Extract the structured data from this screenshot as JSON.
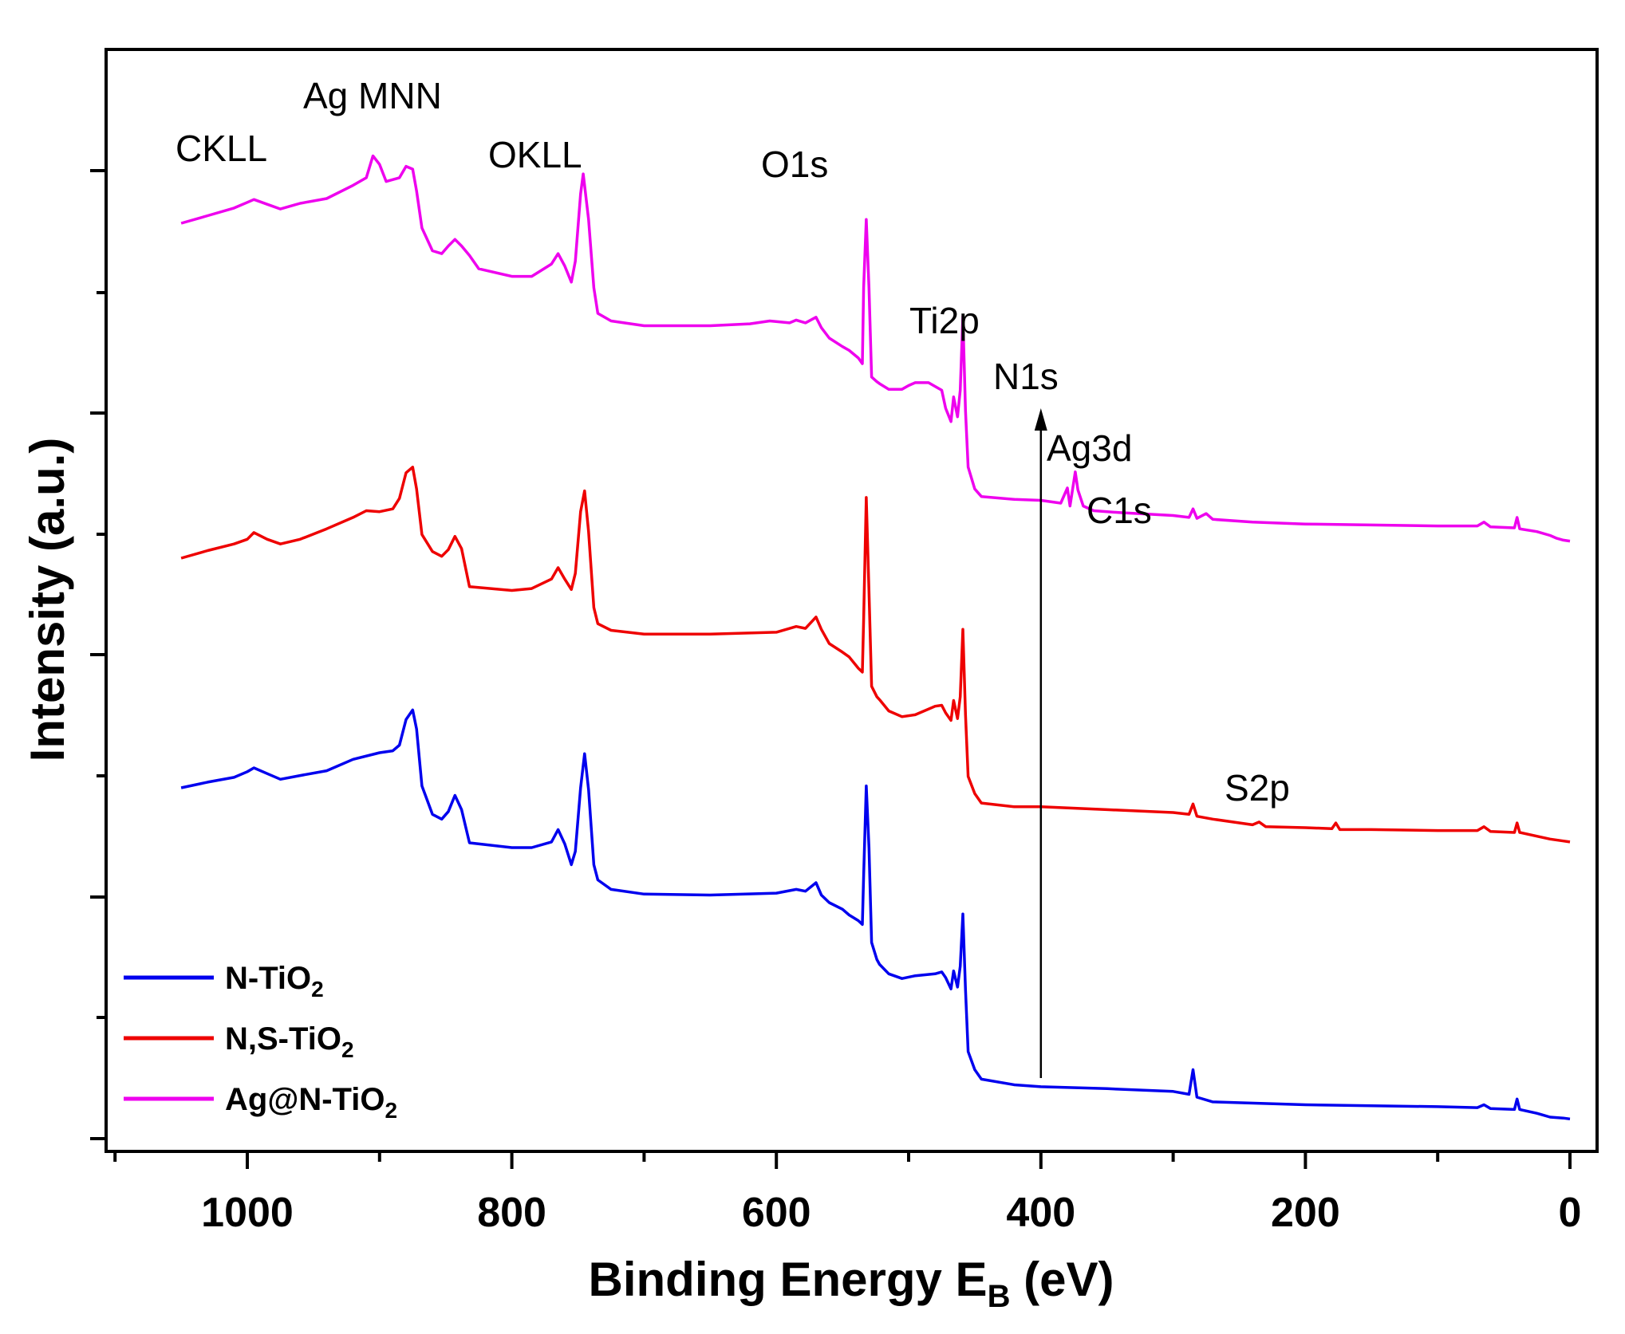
{
  "chart_data": {
    "type": "line",
    "title": "",
    "xlabel": "Binding Energy E",
    "xlabel_sub": "B",
    "xlabel_unit": " (eV)",
    "ylabel": "Intensity (a.u.)",
    "xlim": [
      1100,
      0
    ],
    "ylim": [
      0,
      100
    ],
    "x_ticks": [
      1000,
      800,
      600,
      400,
      200,
      0
    ],
    "x_tick_labels": [
      "1000",
      "800",
      "600",
      "400",
      "200",
      "0"
    ],
    "y_tick_labels_shown": false,
    "legend_position": "bottom-left",
    "series": [
      {
        "name": "N-TiO",
        "sub": "2",
        "color": "#0000ee",
        "points": [
          [
            1050,
            36.3
          ],
          [
            1030,
            36.9
          ],
          [
            1010,
            37.4
          ],
          [
            1000,
            38.0
          ],
          [
            995,
            38.4
          ],
          [
            985,
            37.8
          ],
          [
            975,
            37.2
          ],
          [
            960,
            37.6
          ],
          [
            940,
            38.1
          ],
          [
            920,
            39.3
          ],
          [
            900,
            40.0
          ],
          [
            890,
            40.2
          ],
          [
            885,
            40.8
          ],
          [
            880,
            43.5
          ],
          [
            875,
            44.5
          ],
          [
            872,
            42.5
          ],
          [
            868,
            36.5
          ],
          [
            860,
            33.5
          ],
          [
            853,
            33.0
          ],
          [
            848,
            33.8
          ],
          [
            843,
            35.5
          ],
          [
            838,
            34.0
          ],
          [
            832,
            30.5
          ],
          [
            800,
            30.0
          ],
          [
            785,
            30.0
          ],
          [
            770,
            30.6
          ],
          [
            765,
            31.9
          ],
          [
            760,
            30.4
          ],
          [
            755,
            28.2
          ],
          [
            752,
            29.6
          ],
          [
            748,
            36.3
          ],
          [
            745,
            39.9
          ],
          [
            742,
            36.1
          ],
          [
            738,
            28.2
          ],
          [
            735,
            26.6
          ],
          [
            725,
            25.6
          ],
          [
            700,
            25.1
          ],
          [
            650,
            25.0
          ],
          [
            600,
            25.2
          ],
          [
            585,
            25.6
          ],
          [
            578,
            25.4
          ],
          [
            570,
            26.3
          ],
          [
            566,
            25.0
          ],
          [
            560,
            24.2
          ],
          [
            550,
            23.5
          ],
          [
            545,
            22.9
          ],
          [
            538,
            22.3
          ],
          [
            535,
            21.9
          ],
          [
            534,
            27.0
          ],
          [
            532,
            36.5
          ],
          [
            530,
            30.0
          ],
          [
            528,
            20.0
          ],
          [
            524,
            18.2
          ],
          [
            522,
            17.7
          ],
          [
            515,
            16.7
          ],
          [
            505,
            16.2
          ],
          [
            495,
            16.5
          ],
          [
            480,
            16.7
          ],
          [
            475,
            16.9
          ],
          [
            472,
            16.3
          ],
          [
            468,
            15.1
          ],
          [
            466,
            17.0
          ],
          [
            463,
            15.3
          ],
          [
            461,
            17.5
          ],
          [
            459,
            23.0
          ],
          [
            457,
            15.0
          ],
          [
            455,
            8.5
          ],
          [
            450,
            6.6
          ],
          [
            445,
            5.6
          ],
          [
            420,
            5.0
          ],
          [
            400,
            4.8
          ],
          [
            350,
            4.6
          ],
          [
            300,
            4.3
          ],
          [
            288,
            4.0
          ],
          [
            285,
            6.6
          ],
          [
            282,
            3.7
          ],
          [
            270,
            3.2
          ],
          [
            200,
            2.9
          ],
          [
            150,
            2.8
          ],
          [
            100,
            2.7
          ],
          [
            70,
            2.6
          ],
          [
            65,
            2.9
          ],
          [
            60,
            2.5
          ],
          [
            42,
            2.4
          ],
          [
            40,
            3.5
          ],
          [
            38,
            2.4
          ],
          [
            25,
            2.0
          ],
          [
            15,
            1.6
          ],
          [
            5,
            1.5
          ],
          [
            0,
            1.4
          ]
        ]
      },
      {
        "name": "N,S-TiO",
        "sub": "2",
        "color": "#ee0000",
        "points": [
          [
            1050,
            60.5
          ],
          [
            1030,
            61.3
          ],
          [
            1010,
            62.0
          ],
          [
            1000,
            62.5
          ],
          [
            995,
            63.2
          ],
          [
            985,
            62.5
          ],
          [
            975,
            62.0
          ],
          [
            960,
            62.5
          ],
          [
            940,
            63.6
          ],
          [
            920,
            64.8
          ],
          [
            910,
            65.5
          ],
          [
            900,
            65.4
          ],
          [
            890,
            65.7
          ],
          [
            885,
            66.8
          ],
          [
            880,
            69.5
          ],
          [
            875,
            70.1
          ],
          [
            872,
            67.8
          ],
          [
            868,
            63.0
          ],
          [
            860,
            61.2
          ],
          [
            853,
            60.7
          ],
          [
            848,
            61.4
          ],
          [
            843,
            62.8
          ],
          [
            838,
            61.5
          ],
          [
            832,
            57.5
          ],
          [
            800,
            57.1
          ],
          [
            785,
            57.3
          ],
          [
            770,
            58.3
          ],
          [
            765,
            59.5
          ],
          [
            760,
            58.3
          ],
          [
            755,
            57.2
          ],
          [
            752,
            58.9
          ],
          [
            748,
            65.4
          ],
          [
            745,
            67.6
          ],
          [
            742,
            63.3
          ],
          [
            738,
            55.3
          ],
          [
            735,
            53.6
          ],
          [
            725,
            52.9
          ],
          [
            700,
            52.5
          ],
          [
            650,
            52.5
          ],
          [
            600,
            52.7
          ],
          [
            585,
            53.3
          ],
          [
            578,
            53.1
          ],
          [
            570,
            54.3
          ],
          [
            566,
            53.0
          ],
          [
            560,
            51.5
          ],
          [
            550,
            50.6
          ],
          [
            545,
            50.1
          ],
          [
            538,
            48.9
          ],
          [
            535,
            48.5
          ],
          [
            534,
            54.0
          ],
          [
            532,
            66.9
          ],
          [
            530,
            57.0
          ],
          [
            528,
            47.0
          ],
          [
            524,
            45.9
          ],
          [
            522,
            45.6
          ],
          [
            515,
            44.4
          ],
          [
            505,
            43.8
          ],
          [
            495,
            44.0
          ],
          [
            480,
            44.9
          ],
          [
            475,
            45.0
          ],
          [
            472,
            44.2
          ],
          [
            468,
            43.4
          ],
          [
            466,
            45.5
          ],
          [
            463,
            43.6
          ],
          [
            461,
            45.9
          ],
          [
            459,
            53.0
          ],
          [
            457,
            44.0
          ],
          [
            455,
            37.5
          ],
          [
            450,
            35.7
          ],
          [
            445,
            34.7
          ],
          [
            420,
            34.3
          ],
          [
            400,
            34.3
          ],
          [
            350,
            34.0
          ],
          [
            300,
            33.7
          ],
          [
            288,
            33.5
          ],
          [
            285,
            34.6
          ],
          [
            282,
            33.3
          ],
          [
            270,
            33.0
          ],
          [
            240,
            32.4
          ],
          [
            235,
            32.7
          ],
          [
            230,
            32.2
          ],
          [
            200,
            32.1
          ],
          [
            180,
            32.0
          ],
          [
            177,
            32.6
          ],
          [
            174,
            31.9
          ],
          [
            150,
            31.9
          ],
          [
            100,
            31.8
          ],
          [
            70,
            31.8
          ],
          [
            65,
            32.2
          ],
          [
            60,
            31.7
          ],
          [
            42,
            31.6
          ],
          [
            40,
            32.6
          ],
          [
            38,
            31.6
          ],
          [
            25,
            31.2
          ],
          [
            15,
            30.9
          ],
          [
            5,
            30.7
          ],
          [
            0,
            30.6
          ]
        ]
      },
      {
        "name": "Ag@N-TiO",
        "sub": "2",
        "color": "#ee00ee",
        "points": [
          [
            1050,
            95.8
          ],
          [
            1030,
            96.6
          ],
          [
            1010,
            97.4
          ],
          [
            1000,
            98.0
          ],
          [
            995,
            98.3
          ],
          [
            985,
            97.8
          ],
          [
            975,
            97.3
          ],
          [
            960,
            97.9
          ],
          [
            940,
            98.4
          ],
          [
            920,
            99.8
          ],
          [
            910,
            100.6
          ],
          [
            905,
            102.9
          ],
          [
            900,
            102.0
          ],
          [
            895,
            100.2
          ],
          [
            885,
            100.6
          ],
          [
            880,
            101.8
          ],
          [
            875,
            101.5
          ],
          [
            872,
            99.2
          ],
          [
            868,
            95.3
          ],
          [
            860,
            92.9
          ],
          [
            853,
            92.6
          ],
          [
            848,
            93.4
          ],
          [
            843,
            94.1
          ],
          [
            838,
            93.4
          ],
          [
            832,
            92.4
          ],
          [
            825,
            91.0
          ],
          [
            800,
            90.2
          ],
          [
            785,
            90.2
          ],
          [
            770,
            91.5
          ],
          [
            765,
            92.6
          ],
          [
            760,
            91.3
          ],
          [
            755,
            89.6
          ],
          [
            752,
            91.8
          ],
          [
            748,
            98.9
          ],
          [
            746,
            101.0
          ],
          [
            742,
            96.2
          ],
          [
            738,
            89.0
          ],
          [
            735,
            86.3
          ],
          [
            725,
            85.5
          ],
          [
            700,
            85.0
          ],
          [
            650,
            85.0
          ],
          [
            620,
            85.2
          ],
          [
            605,
            85.5
          ],
          [
            590,
            85.3
          ],
          [
            585,
            85.6
          ],
          [
            578,
            85.3
          ],
          [
            570,
            85.9
          ],
          [
            566,
            84.8
          ],
          [
            560,
            83.7
          ],
          [
            550,
            82.8
          ],
          [
            545,
            82.4
          ],
          [
            538,
            81.6
          ],
          [
            535,
            81.0
          ],
          [
            534,
            89.0
          ],
          [
            532,
            96.2
          ],
          [
            530,
            89.0
          ],
          [
            528,
            79.6
          ],
          [
            524,
            79.1
          ],
          [
            522,
            78.9
          ],
          [
            515,
            78.3
          ],
          [
            505,
            78.3
          ],
          [
            500,
            78.7
          ],
          [
            495,
            79.0
          ],
          [
            485,
            79.0
          ],
          [
            475,
            78.2
          ],
          [
            472,
            76.3
          ],
          [
            468,
            74.9
          ],
          [
            466,
            77.5
          ],
          [
            463,
            75.4
          ],
          [
            461,
            78.2
          ],
          [
            459,
            86.0
          ],
          [
            457,
            76.0
          ],
          [
            455,
            70.1
          ],
          [
            450,
            67.8
          ],
          [
            445,
            67.0
          ],
          [
            420,
            66.7
          ],
          [
            400,
            66.6
          ],
          [
            385,
            66.3
          ],
          [
            380,
            67.9
          ],
          [
            378,
            66.0
          ],
          [
            374,
            69.6
          ],
          [
            372,
            67.7
          ],
          [
            368,
            66.0
          ],
          [
            360,
            65.5
          ],
          [
            340,
            65.3
          ],
          [
            300,
            65.0
          ],
          [
            288,
            64.8
          ],
          [
            285,
            65.7
          ],
          [
            282,
            64.7
          ],
          [
            275,
            65.2
          ],
          [
            270,
            64.6
          ],
          [
            240,
            64.3
          ],
          [
            200,
            64.1
          ],
          [
            150,
            64.0
          ],
          [
            100,
            63.9
          ],
          [
            70,
            63.9
          ],
          [
            65,
            64.3
          ],
          [
            60,
            63.8
          ],
          [
            42,
            63.7
          ],
          [
            40,
            64.8
          ],
          [
            38,
            63.6
          ],
          [
            25,
            63.3
          ],
          [
            15,
            62.9
          ],
          [
            10,
            62.6
          ],
          [
            5,
            62.4
          ],
          [
            0,
            62.3
          ]
        ]
      }
    ],
    "annotations": [
      {
        "text": "CKLL"
      },
      {
        "text": "Ag MNN"
      },
      {
        "text": "OKLL"
      },
      {
        "text": "O1s"
      },
      {
        "text": "Ti2p"
      },
      {
        "text": "N1s"
      },
      {
        "text": "Ag3d"
      },
      {
        "text": "C1s"
      },
      {
        "text": "S2p"
      }
    ],
    "arrow_x": 400
  }
}
